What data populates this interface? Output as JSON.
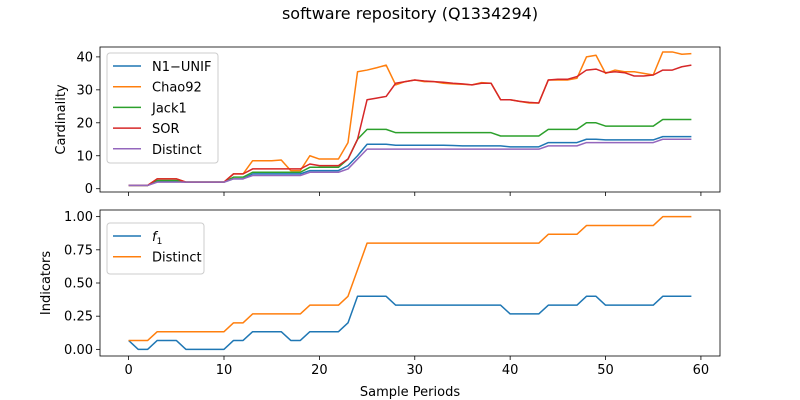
{
  "figure": {
    "title": "software repository (Q1334294)",
    "xlabel": "Sample Periods"
  },
  "chart_data": [
    {
      "type": "line",
      "ylabel": "Cardinality",
      "xlim": [
        -3,
        62
      ],
      "ylim": [
        -1,
        43
      ],
      "xticks": [
        0,
        10,
        20,
        30,
        40,
        50,
        60
      ],
      "yticks": [
        0,
        10,
        20,
        30,
        40
      ],
      "xtick_labels_visible": false,
      "legend_position": "upper-left",
      "grid": false,
      "x": [
        0,
        1,
        2,
        3,
        4,
        5,
        6,
        7,
        8,
        9,
        10,
        11,
        12,
        13,
        14,
        15,
        16,
        17,
        18,
        19,
        20,
        21,
        22,
        23,
        24,
        25,
        26,
        27,
        28,
        29,
        30,
        31,
        32,
        33,
        34,
        35,
        36,
        37,
        38,
        39,
        40,
        41,
        42,
        43,
        44,
        45,
        46,
        47,
        48,
        49,
        50,
        51,
        52,
        53,
        54,
        55,
        56,
        57,
        58,
        59
      ],
      "series": [
        {
          "name": "N1−UNIF",
          "color": "#1f77b4",
          "values": [
            1,
            1,
            1,
            2.2,
            2.2,
            2.2,
            2,
            2,
            2,
            2,
            2,
            3,
            3,
            4.5,
            4.5,
            4.5,
            4.5,
            4.5,
            4.5,
            5.5,
            5.5,
            5.5,
            5.5,
            7,
            10,
            13.5,
            13.5,
            13.5,
            13.2,
            13.2,
            13.2,
            13.2,
            13.2,
            13.2,
            13.1,
            13,
            13,
            13,
            13,
            13,
            12.7,
            12.7,
            12.7,
            12.7,
            14,
            14,
            14,
            14,
            15,
            15,
            14.8,
            14.8,
            14.8,
            14.8,
            14.8,
            14.8,
            15.8,
            15.8,
            15.8,
            15.8
          ]
        },
        {
          "name": "Chao92",
          "color": "#ff7f0e",
          "values": [
            1,
            1,
            1,
            3,
            3,
            3,
            2,
            2,
            2,
            2,
            2,
            4.5,
            4.5,
            8.5,
            8.5,
            8.5,
            8.7,
            5.5,
            5.5,
            10,
            9,
            9,
            9,
            14,
            35.5,
            36,
            36.7,
            37.5,
            31.5,
            32.5,
            33,
            32.5,
            32.5,
            32,
            31.8,
            31.7,
            31.5,
            32.2,
            32,
            27,
            27,
            26.5,
            26,
            26,
            33,
            33,
            33,
            33.5,
            40,
            40.5,
            35,
            36,
            35.5,
            35.5,
            35,
            34.5,
            41.5,
            41.5,
            40.8,
            41
          ]
        },
        {
          "name": "Jack1",
          "color": "#2ca02c",
          "values": [
            1,
            1,
            1,
            2.5,
            2.5,
            2.5,
            2,
            2,
            2,
            2,
            2,
            3.5,
            3.5,
            5,
            5,
            5,
            5,
            5,
            5,
            6.5,
            6.5,
            6.5,
            6.5,
            9,
            15,
            18,
            18,
            18,
            17,
            17,
            17,
            17,
            17,
            17,
            17,
            17,
            17,
            17,
            17,
            16,
            16,
            16,
            16,
            16,
            18,
            18,
            18,
            18,
            20,
            20,
            19,
            19,
            19,
            19,
            19,
            19,
            21,
            21,
            21,
            21
          ]
        },
        {
          "name": "SOR",
          "color": "#d62728",
          "values": [
            1,
            1,
            1,
            3,
            3,
            3,
            2,
            2,
            2,
            2,
            2,
            4.5,
            4.5,
            6,
            6,
            6,
            6,
            6,
            6,
            7.5,
            7,
            7,
            7,
            9,
            15,
            27,
            27.5,
            28,
            32,
            32.5,
            33,
            32.7,
            32.5,
            32.3,
            32,
            31.8,
            31.5,
            32,
            32,
            27,
            27,
            26.5,
            26.2,
            26,
            33,
            33.2,
            33.2,
            34,
            36,
            36.3,
            35.2,
            35.5,
            35.2,
            34.2,
            34.2,
            34.5,
            36,
            36,
            37,
            37.5
          ]
        },
        {
          "name": "Distinct",
          "color": "#9467bd",
          "values": [
            1,
            1,
            1,
            2,
            2,
            2,
            2,
            2,
            2,
            2,
            2,
            3,
            3,
            4,
            4,
            4,
            4,
            4,
            4,
            5,
            5,
            5,
            5,
            6,
            9,
            12,
            12,
            12,
            12,
            12,
            12,
            12,
            12,
            12,
            12,
            12,
            12,
            12,
            12,
            12,
            12,
            12,
            12,
            12,
            13,
            13,
            13,
            13,
            14,
            14,
            14,
            14,
            14,
            14,
            14,
            14,
            15,
            15,
            15,
            15
          ]
        }
      ]
    },
    {
      "type": "line",
      "ylabel": "Indicators",
      "xlabel": "Sample Periods",
      "xlim": [
        -3,
        62
      ],
      "ylim": [
        -0.05,
        1.05
      ],
      "xticks": [
        0,
        10,
        20,
        30,
        40,
        50,
        60
      ],
      "yticks": [
        0.0,
        0.25,
        0.5,
        0.75,
        1.0
      ],
      "ytick_labels": [
        "0.00",
        "0.25",
        "0.50",
        "0.75",
        "1.00"
      ],
      "legend_position": "upper-left",
      "grid": false,
      "x": [
        0,
        1,
        2,
        3,
        4,
        5,
        6,
        7,
        8,
        9,
        10,
        11,
        12,
        13,
        14,
        15,
        16,
        17,
        18,
        19,
        20,
        21,
        22,
        23,
        24,
        25,
        26,
        27,
        28,
        29,
        30,
        31,
        32,
        33,
        34,
        35,
        36,
        37,
        38,
        39,
        40,
        41,
        42,
        43,
        44,
        45,
        46,
        47,
        48,
        49,
        50,
        51,
        52,
        53,
        54,
        55,
        56,
        57,
        58,
        59
      ],
      "series": [
        {
          "name": "f1",
          "color": "#1f77b4",
          "values": [
            0.067,
            0,
            0,
            0.067,
            0.067,
            0.067,
            0,
            0,
            0,
            0,
            0,
            0.067,
            0.067,
            0.133,
            0.133,
            0.133,
            0.133,
            0.067,
            0.067,
            0.133,
            0.133,
            0.133,
            0.133,
            0.2,
            0.4,
            0.4,
            0.4,
            0.4,
            0.333,
            0.333,
            0.333,
            0.333,
            0.333,
            0.333,
            0.333,
            0.333,
            0.333,
            0.333,
            0.333,
            0.333,
            0.267,
            0.267,
            0.267,
            0.267,
            0.333,
            0.333,
            0.333,
            0.333,
            0.4,
            0.4,
            0.333,
            0.333,
            0.333,
            0.333,
            0.333,
            0.333,
            0.4,
            0.4,
            0.4,
            0.4
          ]
        },
        {
          "name": "Distinct",
          "color": "#ff7f0e",
          "values": [
            0.067,
            0.067,
            0.067,
            0.133,
            0.133,
            0.133,
            0.133,
            0.133,
            0.133,
            0.133,
            0.133,
            0.2,
            0.2,
            0.267,
            0.267,
            0.267,
            0.267,
            0.267,
            0.267,
            0.333,
            0.333,
            0.333,
            0.333,
            0.4,
            0.6,
            0.8,
            0.8,
            0.8,
            0.8,
            0.8,
            0.8,
            0.8,
            0.8,
            0.8,
            0.8,
            0.8,
            0.8,
            0.8,
            0.8,
            0.8,
            0.8,
            0.8,
            0.8,
            0.8,
            0.867,
            0.867,
            0.867,
            0.867,
            0.933,
            0.933,
            0.933,
            0.933,
            0.933,
            0.933,
            0.933,
            0.933,
            1,
            1,
            1,
            1
          ]
        }
      ]
    }
  ]
}
